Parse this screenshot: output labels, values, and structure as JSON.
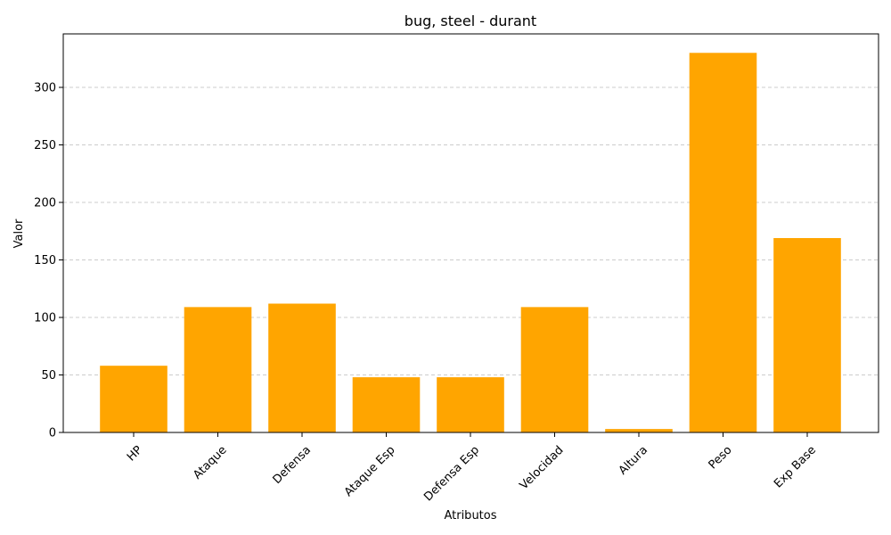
{
  "chart_data": {
    "type": "bar",
    "title": "bug, steel - durant",
    "xlabel": "Atributos",
    "ylabel": "Valor",
    "categories": [
      "HP",
      "Ataque",
      "Defensa",
      "Ataque Esp",
      "Defensa Esp",
      "Velocidad",
      "Altura",
      "Peso",
      "Exp Base"
    ],
    "values": [
      58,
      109,
      112,
      48,
      48,
      109,
      3,
      330,
      169
    ],
    "ylim": [
      0,
      346.5
    ],
    "yticks": [
      0,
      50,
      100,
      150,
      200,
      250,
      300
    ],
    "grid": "y-dashed",
    "bar_color": "#FFA500"
  }
}
